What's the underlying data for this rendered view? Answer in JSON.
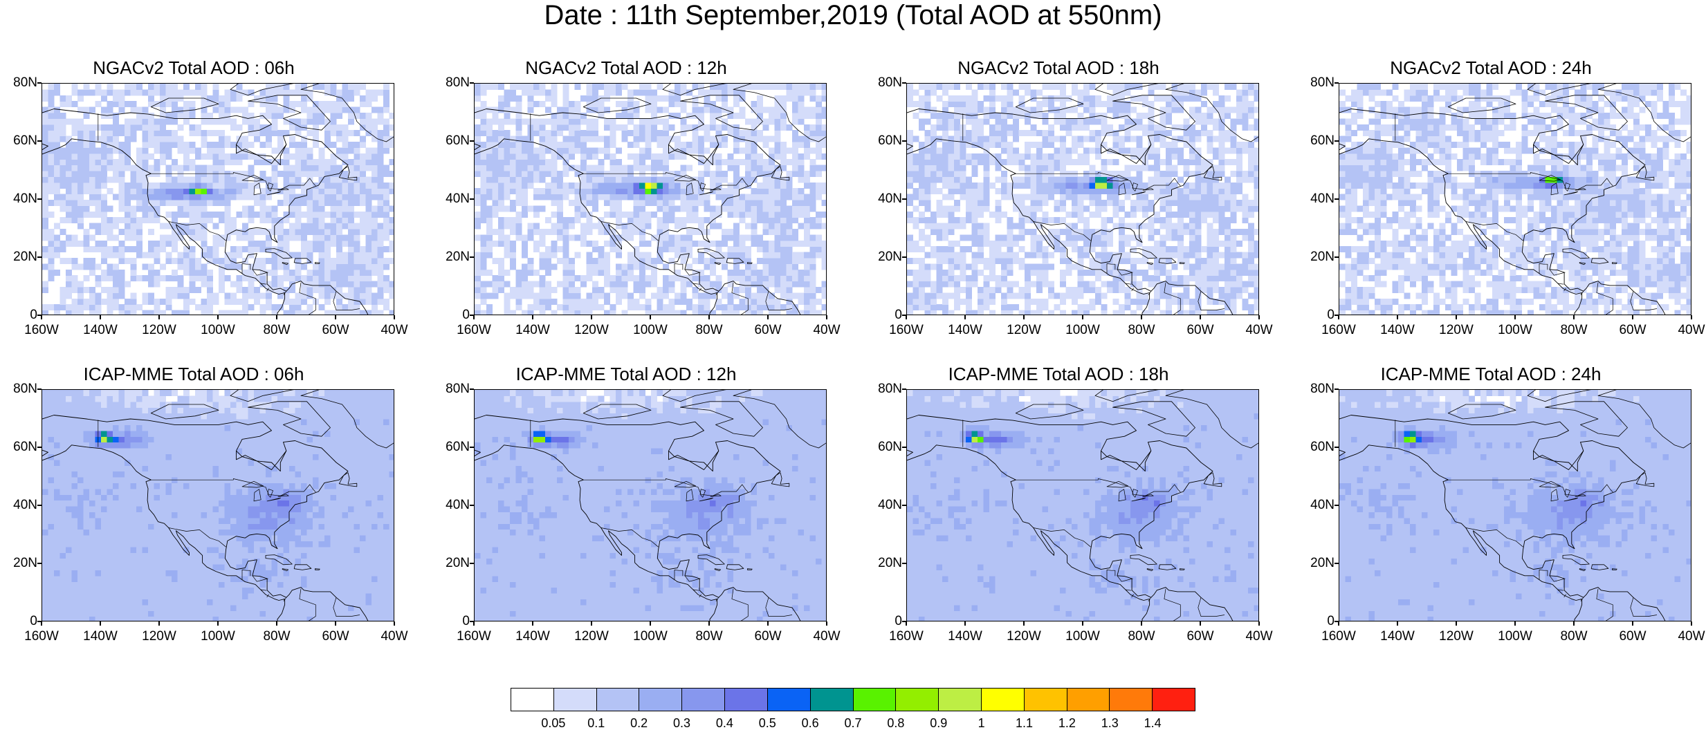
{
  "title": "Date : 11th September,2019 (Total AOD at 550nm)",
  "panels": [
    {
      "title": "NGACv2 Total AOD : 06h",
      "model": "NGAC",
      "hour": 6
    },
    {
      "title": "NGACv2 Total AOD : 12h",
      "model": "NGAC",
      "hour": 12
    },
    {
      "title": "NGACv2 Total AOD : 18h",
      "model": "NGAC",
      "hour": 18
    },
    {
      "title": "NGACv2 Total AOD : 24h",
      "model": "NGAC",
      "hour": 24
    },
    {
      "title": "ICAP-MME Total AOD : 06h",
      "model": "ICAP",
      "hour": 6
    },
    {
      "title": "ICAP-MME Total AOD : 12h",
      "model": "ICAP",
      "hour": 12
    },
    {
      "title": "ICAP-MME Total AOD : 18h",
      "model": "ICAP",
      "hour": 18
    },
    {
      "title": "ICAP-MME Total AOD : 24h",
      "model": "ICAP",
      "hour": 24
    }
  ],
  "lat_labels": [
    "80N",
    "60N",
    "40N",
    "20N",
    "0"
  ],
  "lon_labels": [
    "160W",
    "140W",
    "120W",
    "100W",
    "80W",
    "60W",
    "40W"
  ],
  "map_extent": {
    "lon": [
      -160,
      -40
    ],
    "lat": [
      0,
      80
    ]
  },
  "colorbar": {
    "colors": [
      "#ffffff",
      "#d4dcfa",
      "#b4c3f5",
      "#9aaef2",
      "#8797ee",
      "#6b74e8",
      "#0a63f5",
      "#009490",
      "#59f200",
      "#93ee00",
      "#bdee44",
      "#ffff00",
      "#ffc200",
      "#ff9f00",
      "#ff7a0a",
      "#ff2010"
    ],
    "labels": [
      "0.05",
      "0.1",
      "0.2",
      "0.3",
      "0.4",
      "0.5",
      "0.6",
      "0.7",
      "0.8",
      "0.9",
      "1",
      "1.1",
      "1.2",
      "1.3",
      "1.4"
    ]
  }
}
